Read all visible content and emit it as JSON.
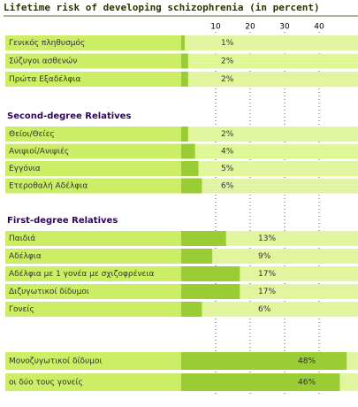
{
  "chart_data": {
    "type": "bar",
    "title": "Lifetime risk of developing schizophrenia (in percent)",
    "xlim": [
      0,
      50
    ],
    "xticks": [
      10,
      20,
      30,
      40
    ],
    "color": "#9acc33",
    "groups": [
      {
        "categories": [
          "Γενικός πληθυσμός",
          "Σύζυγοι ασθενών",
          "Πρώτα Εξαδέλφια"
        ],
        "values": [
          1,
          2,
          2
        ],
        "value_labels": [
          "1%",
          "2%",
          "2%"
        ]
      },
      {
        "name": "Second-degree Relatives",
        "categories": [
          "Θείοι/Θείες",
          "Ανιψιοί/Ανιψιές",
          "Εγγόνια",
          "Ετεροθαλή Αδέλφια"
        ],
        "values": [
          2,
          4,
          5,
          6
        ],
        "value_labels": [
          "2%",
          "4%",
          "5%",
          "6%"
        ]
      },
      {
        "name": "First-degree Relatives",
        "categories": [
          "Παιδιά",
          "Αδέλφια",
          "Αδέλφια με 1 γονέα με σχιζοφρένεια",
          "Διζυγωτικοί δίδυμοι",
          "Γονείς"
        ],
        "values": [
          13,
          9,
          17,
          17,
          6
        ],
        "value_labels": [
          "13%",
          "9%",
          "17%",
          "17%",
          "6%"
        ]
      },
      {
        "categories": [
          "Μονοζυγωτικοί δίδυμοι",
          "οι δύο τους γονείς"
        ],
        "values": [
          48,
          46
        ],
        "value_labels": [
          "48%",
          "46%"
        ]
      }
    ]
  }
}
